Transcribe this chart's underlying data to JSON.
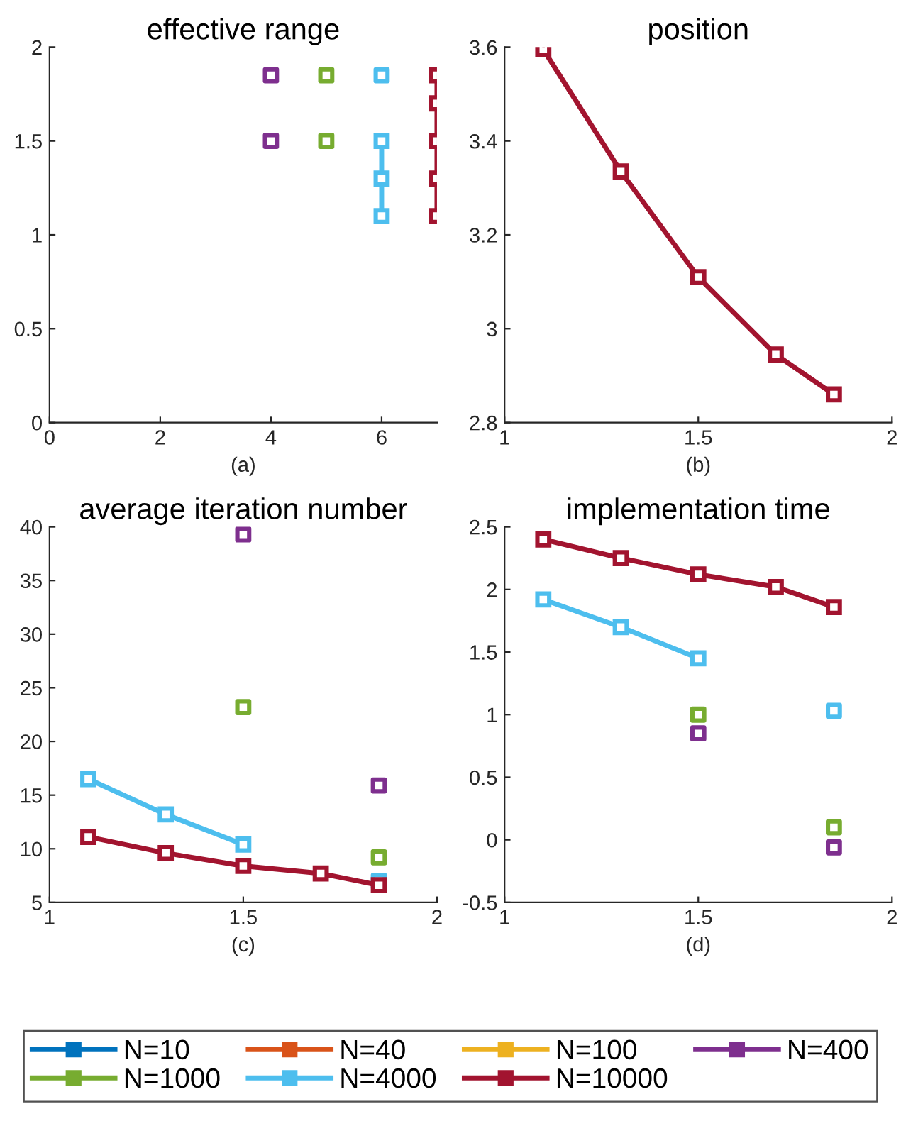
{
  "chart_data": [
    {
      "type": "line",
      "title": "effective range",
      "xlabel": "(a)",
      "xlim": [
        0,
        7
      ],
      "xticks": [
        0,
        2,
        4,
        6
      ],
      "ylim": [
        0,
        2
      ],
      "yticks": [
        0,
        0.5,
        1,
        1.5,
        2
      ],
      "marker": "square",
      "series": [
        {
          "type": "scatter",
          "color": "#7e2f8e",
          "x": [
            4,
            4
          ],
          "values": [
            1.5,
            1.85
          ]
        },
        {
          "type": "scatter",
          "color": "#77ac30",
          "x": [
            5,
            5
          ],
          "values": [
            1.5,
            1.85
          ]
        },
        {
          "color": "#4dbeee",
          "x": [
            6,
            6,
            6
          ],
          "values": [
            1.1,
            1.3,
            1.5
          ]
        },
        {
          "type": "scatter",
          "color": "#4dbeee",
          "x": [
            6
          ],
          "values": [
            1.85
          ]
        },
        {
          "color": "#a2142f",
          "x": [
            7,
            7,
            7,
            7,
            7
          ],
          "values": [
            1.1,
            1.3,
            1.5,
            1.7,
            1.85
          ]
        }
      ]
    },
    {
      "type": "line",
      "title": "position",
      "xlabel": "(b)",
      "xlim": [
        1,
        2
      ],
      "xticks": [
        1,
        1.5,
        2
      ],
      "ylim": [
        2.8,
        3.6
      ],
      "yticks": [
        2.8,
        3,
        3.2,
        3.4,
        3.6
      ],
      "marker": "square",
      "series": [
        {
          "color": "#a2142f",
          "x": [
            1.1,
            1.3,
            1.5,
            1.7,
            1.85
          ],
          "values": [
            3.595,
            3.335,
            3.11,
            2.945,
            2.86
          ]
        }
      ]
    },
    {
      "type": "line",
      "title": "average iteration number",
      "xlabel": "(c)",
      "xlim": [
        1,
        2
      ],
      "xticks": [
        1,
        1.5,
        2
      ],
      "ylim": [
        5,
        40
      ],
      "yticks": [
        5,
        10,
        15,
        20,
        25,
        30,
        35,
        40
      ],
      "marker": "square",
      "series": [
        {
          "type": "scatter",
          "color": "#7e2f8e",
          "x": [
            1.5,
            1.85
          ],
          "values": [
            39.3,
            15.9
          ]
        },
        {
          "type": "scatter",
          "color": "#77ac30",
          "x": [
            1.5,
            1.85
          ],
          "values": [
            23.2,
            9.2
          ]
        },
        {
          "color": "#4dbeee",
          "x": [
            1.1,
            1.3,
            1.5
          ],
          "values": [
            16.5,
            13.2,
            10.4
          ]
        },
        {
          "type": "scatter",
          "color": "#4dbeee",
          "x": [
            1.85
          ],
          "values": [
            7.0
          ]
        },
        {
          "color": "#a2142f",
          "x": [
            1.1,
            1.3,
            1.5,
            1.7,
            1.85
          ],
          "values": [
            11.1,
            9.6,
            8.4,
            7.7,
            6.6
          ]
        }
      ]
    },
    {
      "type": "line",
      "title": "implementation time",
      "xlabel": "(d)",
      "xlim": [
        1,
        2
      ],
      "xticks": [
        1,
        1.5,
        2
      ],
      "ylim": [
        -0.5,
        2.5
      ],
      "yticks": [
        -0.5,
        0,
        0.5,
        1,
        1.5,
        2,
        2.5
      ],
      "marker": "square",
      "legend": "bottom",
      "series": [
        {
          "name": "N=10",
          "color": "#0072bd"
        },
        {
          "name": "N=40",
          "color": "#d95319"
        },
        {
          "name": "N=100",
          "color": "#edb120"
        },
        {
          "name": "N=400",
          "type": "scatter",
          "color": "#7e2f8e",
          "x": [
            1.5,
            1.85
          ],
          "values": [
            0.85,
            -0.06
          ]
        },
        {
          "name": "N=1000",
          "type": "scatter",
          "color": "#77ac30",
          "x": [
            1.5,
            1.85
          ],
          "values": [
            1.0,
            0.1
          ]
        },
        {
          "name": "N=4000",
          "color": "#4dbeee",
          "x": [
            1.1,
            1.3,
            1.5
          ],
          "values": [
            1.92,
            1.7,
            1.45
          ]
        },
        {
          "type": "scatter",
          "color": "#4dbeee",
          "x": [
            1.85
          ],
          "values": [
            1.03
          ]
        },
        {
          "name": "N=10000",
          "color": "#a2142f",
          "x": [
            1.1,
            1.3,
            1.5,
            1.7,
            1.85
          ],
          "values": [
            2.4,
            2.25,
            2.12,
            2.02,
            1.86
          ]
        }
      ]
    }
  ]
}
